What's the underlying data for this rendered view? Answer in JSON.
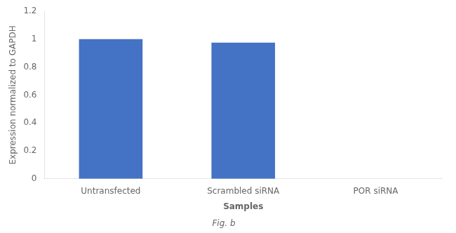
{
  "chart_data": {
    "type": "bar",
    "subtitle": "Fig. b",
    "categories": [
      "Untransfected",
      "Scrambled siRNA",
      "POR siRNA"
    ],
    "values": [
      1.0,
      0.975,
      0.0
    ],
    "color": "#4472c4",
    "xlabel": "Samples",
    "ylabel": "Expression normalized to GAPDH",
    "ylim": [
      0,
      1.2
    ],
    "yticks": [
      0,
      0.2,
      0.4,
      0.6,
      0.8,
      1.0,
      1.2
    ],
    "grid": false
  }
}
